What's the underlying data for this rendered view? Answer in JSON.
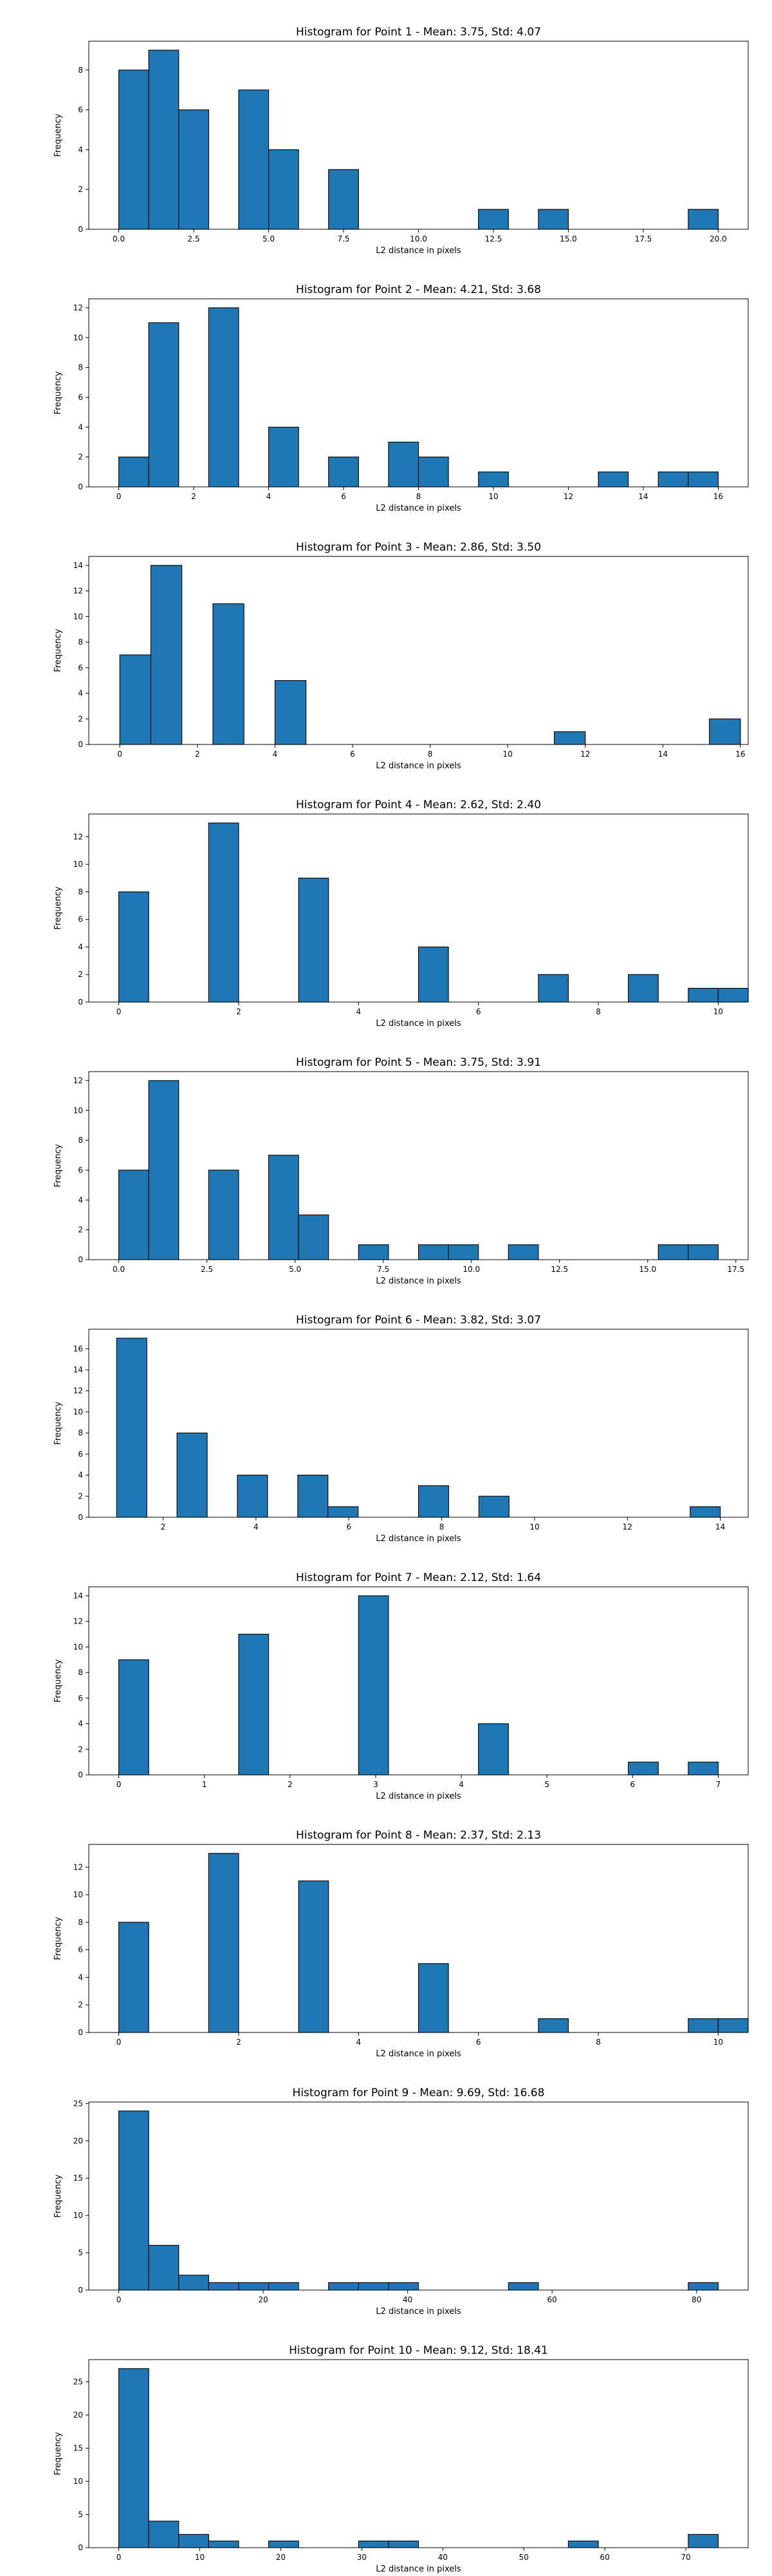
{
  "style": {
    "bar_fill": "#1f77b4",
    "bar_edge": "#000000",
    "background": "#ffffff"
  },
  "chart_data": [
    {
      "type": "bar",
      "title": "Histogram for Point 1 - Mean: 3.75, Std: 4.07",
      "xlabel": "L2 distance in pixels",
      "ylabel": "Frequency",
      "xlim": [
        -1.0,
        21.0
      ],
      "ylim": [
        0,
        9.45
      ],
      "xticks": [
        0.0,
        2.5,
        5.0,
        7.5,
        10.0,
        12.5,
        15.0,
        17.5,
        20.0
      ],
      "xtick_labels": [
        "0.0",
        "2.5",
        "5.0",
        "7.5",
        "10.0",
        "12.5",
        "15.0",
        "17.5",
        "20.0"
      ],
      "yticks": [
        0,
        2,
        4,
        6,
        8
      ],
      "ytick_labels": [
        "0",
        "2",
        "4",
        "6",
        "8"
      ],
      "bin_start": 0.0,
      "bin_width": 1.0,
      "values": [
        8,
        9,
        6,
        0,
        7,
        4,
        0,
        3,
        0,
        0,
        0,
        0,
        1,
        0,
        1,
        0,
        0,
        0,
        0,
        1
      ]
    },
    {
      "type": "bar",
      "title": "Histogram for Point 2 - Mean: 4.21, Std: 3.68",
      "xlabel": "L2 distance in pixels",
      "ylabel": "Frequency",
      "xlim": [
        -0.8,
        16.8
      ],
      "ylim": [
        0,
        12.6
      ],
      "xticks": [
        0,
        2,
        4,
        6,
        8,
        10,
        12,
        14,
        16
      ],
      "xtick_labels": [
        "0",
        "2",
        "4",
        "6",
        "8",
        "10",
        "12",
        "14",
        "16"
      ],
      "yticks": [
        0,
        2,
        4,
        6,
        8,
        10,
        12
      ],
      "ytick_labels": [
        "0",
        "2",
        "4",
        "6",
        "8",
        "10",
        "12"
      ],
      "bin_start": 0.0,
      "bin_width": 0.8,
      "values": [
        2,
        11,
        0,
        12,
        0,
        4,
        0,
        2,
        0,
        3,
        2,
        0,
        1,
        0,
        0,
        0,
        1,
        0,
        1,
        1
      ]
    },
    {
      "type": "bar",
      "title": "Histogram for Point 3 - Mean: 2.86, Std: 3.50",
      "xlabel": "L2 distance in pixels",
      "ylabel": "Frequency",
      "xlim": [
        -0.8,
        16.2
      ],
      "ylim": [
        0,
        14.7
      ],
      "xticks": [
        0,
        2,
        4,
        6,
        8,
        10,
        12,
        14,
        16
      ],
      "xtick_labels": [
        "0",
        "2",
        "4",
        "6",
        "8",
        "10",
        "12",
        "14",
        "16"
      ],
      "yticks": [
        0,
        2,
        4,
        6,
        8,
        10,
        12,
        14
      ],
      "ytick_labels": [
        "0",
        "2",
        "4",
        "6",
        "8",
        "10",
        "12",
        "14"
      ],
      "bin_start": 0.0,
      "bin_width": 0.8,
      "values": [
        7,
        14,
        0,
        11,
        0,
        5,
        0,
        0,
        0,
        0,
        0,
        0,
        0,
        0,
        1,
        0,
        0,
        0,
        0,
        2
      ]
    },
    {
      "type": "bar",
      "title": "Histogram for Point 4 - Mean: 2.62, Std: 2.40",
      "xlabel": "L2 distance in pixels",
      "ylabel": "Frequency",
      "xlim": [
        -0.5,
        10.5
      ],
      "ylim": [
        0,
        13.65
      ],
      "xticks": [
        0,
        2,
        4,
        6,
        8,
        10
      ],
      "xtick_labels": [
        "0",
        "2",
        "4",
        "6",
        "8",
        "10"
      ],
      "yticks": [
        0,
        2,
        4,
        6,
        8,
        10,
        12
      ],
      "ytick_labels": [
        "0",
        "2",
        "4",
        "6",
        "8",
        "10",
        "12"
      ],
      "bin_start": 0.0,
      "bin_width": 0.5,
      "values": [
        8,
        0,
        0,
        13,
        0,
        0,
        9,
        0,
        0,
        0,
        4,
        0,
        0,
        0,
        2,
        0,
        0,
        2,
        0,
        1,
        1
      ]
    },
    {
      "type": "bar",
      "title": "Histogram for Point 5 - Mean: 3.75, Std: 3.91",
      "xlabel": "L2 distance in pixels",
      "ylabel": "Frequency",
      "xlim": [
        -0.85,
        17.85
      ],
      "ylim": [
        0,
        12.6
      ],
      "xticks": [
        0.0,
        2.5,
        5.0,
        7.5,
        10.0,
        12.5,
        15.0,
        17.5
      ],
      "xtick_labels": [
        "0.0",
        "2.5",
        "5.0",
        "7.5",
        "10.0",
        "12.5",
        "15.0",
        "17.5"
      ],
      "yticks": [
        0,
        2,
        4,
        6,
        8,
        10,
        12
      ],
      "ytick_labels": [
        "0",
        "2",
        "4",
        "6",
        "8",
        "10",
        "12"
      ],
      "bin_start": 0.0,
      "bin_width": 0.85,
      "values": [
        6,
        12,
        0,
        6,
        0,
        7,
        3,
        0,
        1,
        0,
        1,
        1,
        0,
        1,
        0,
        0,
        0,
        0,
        1,
        1
      ]
    },
    {
      "type": "bar",
      "title": "Histogram for Point 6 - Mean: 3.82, Std: 3.07",
      "xlabel": "L2 distance in pixels",
      "ylabel": "Frequency",
      "xlim": [
        0.4,
        14.6
      ],
      "ylim": [
        0,
        17.85
      ],
      "xticks": [
        2,
        4,
        6,
        8,
        10,
        12,
        14
      ],
      "xtick_labels": [
        "2",
        "4",
        "6",
        "8",
        "10",
        "12",
        "14"
      ],
      "yticks": [
        0,
        2,
        4,
        6,
        8,
        10,
        12,
        14,
        16
      ],
      "ytick_labels": [
        "0",
        "2",
        "4",
        "6",
        "8",
        "10",
        "12",
        "14",
        "16"
      ],
      "bin_start": 1.0,
      "bin_width": 0.65,
      "values": [
        17,
        0,
        8,
        0,
        4,
        0,
        4,
        1,
        0,
        0,
        3,
        0,
        2,
        0,
        0,
        0,
        0,
        0,
        0,
        1
      ]
    },
    {
      "type": "bar",
      "title": "Histogram for Point 7 - Mean: 2.12, Std: 1.64",
      "xlabel": "L2 distance in pixels",
      "ylabel": "Frequency",
      "xlim": [
        -0.35,
        7.35
      ],
      "ylim": [
        0,
        14.7
      ],
      "xticks": [
        0,
        1,
        2,
        3,
        4,
        5,
        6,
        7
      ],
      "xtick_labels": [
        "0",
        "1",
        "2",
        "3",
        "4",
        "5",
        "6",
        "7"
      ],
      "yticks": [
        0,
        2,
        4,
        6,
        8,
        10,
        12,
        14
      ],
      "ytick_labels": [
        "0",
        "2",
        "4",
        "6",
        "8",
        "10",
        "12",
        "14"
      ],
      "bin_start": 0.0,
      "bin_width": 0.35,
      "values": [
        9,
        0,
        0,
        0,
        11,
        0,
        0,
        0,
        14,
        0,
        0,
        0,
        4,
        0,
        0,
        0,
        0,
        1,
        0,
        1
      ]
    },
    {
      "type": "bar",
      "title": "Histogram for Point 8 - Mean: 2.37, Std: 2.13",
      "xlabel": "L2 distance in pixels",
      "ylabel": "Frequency",
      "xlim": [
        -0.5,
        10.5
      ],
      "ylim": [
        0,
        13.65
      ],
      "xticks": [
        0,
        2,
        4,
        6,
        8,
        10
      ],
      "xtick_labels": [
        "0",
        "2",
        "4",
        "6",
        "8",
        "10"
      ],
      "yticks": [
        0,
        2,
        4,
        6,
        8,
        10,
        12
      ],
      "ytick_labels": [
        "0",
        "2",
        "4",
        "6",
        "8",
        "10",
        "12"
      ],
      "bin_start": 0.0,
      "bin_width": 0.5,
      "values": [
        8,
        0,
        0,
        13,
        0,
        0,
        11,
        0,
        0,
        0,
        5,
        0,
        0,
        0,
        1,
        0,
        0,
        0,
        0,
        1,
        1
      ]
    },
    {
      "type": "bar",
      "title": "Histogram for Point 9 - Mean: 9.69, Std: 16.68",
      "xlabel": "L2 distance in pixels",
      "ylabel": "Frequency",
      "xlim": [
        -4.15,
        87.15
      ],
      "ylim": [
        0,
        25.2
      ],
      "xticks": [
        0,
        20,
        40,
        60,
        80
      ],
      "xtick_labels": [
        "0",
        "20",
        "40",
        "60",
        "80"
      ],
      "yticks": [
        0,
        5,
        10,
        15,
        20,
        25
      ],
      "ytick_labels": [
        "0",
        "5",
        "10",
        "15",
        "20",
        "25"
      ],
      "bin_start": 0.0,
      "bin_width": 4.15,
      "values": [
        24,
        6,
        2,
        1,
        1,
        1,
        0,
        1,
        1,
        1,
        0,
        0,
        0,
        1,
        0,
        0,
        0,
        0,
        0,
        1
      ]
    },
    {
      "type": "bar",
      "title": "Histogram for Point 10 - Mean: 9.12, Std: 18.41",
      "xlabel": "L2 distance in pixels",
      "ylabel": "Frequency",
      "xlim": [
        -3.7,
        77.7
      ],
      "ylim": [
        0,
        28.35
      ],
      "xticks": [
        0,
        10,
        20,
        30,
        40,
        50,
        60,
        70
      ],
      "xtick_labels": [
        "0",
        "10",
        "20",
        "30",
        "40",
        "50",
        "60",
        "70"
      ],
      "yticks": [
        0,
        5,
        10,
        15,
        20,
        25
      ],
      "ytick_labels": [
        "0",
        "5",
        "10",
        "15",
        "20",
        "25"
      ],
      "bin_start": 0.0,
      "bin_width": 3.7,
      "values": [
        27,
        4,
        2,
        1,
        0,
        1,
        0,
        0,
        1,
        1,
        0,
        0,
        0,
        0,
        0,
        1,
        0,
        0,
        0,
        2
      ]
    }
  ]
}
